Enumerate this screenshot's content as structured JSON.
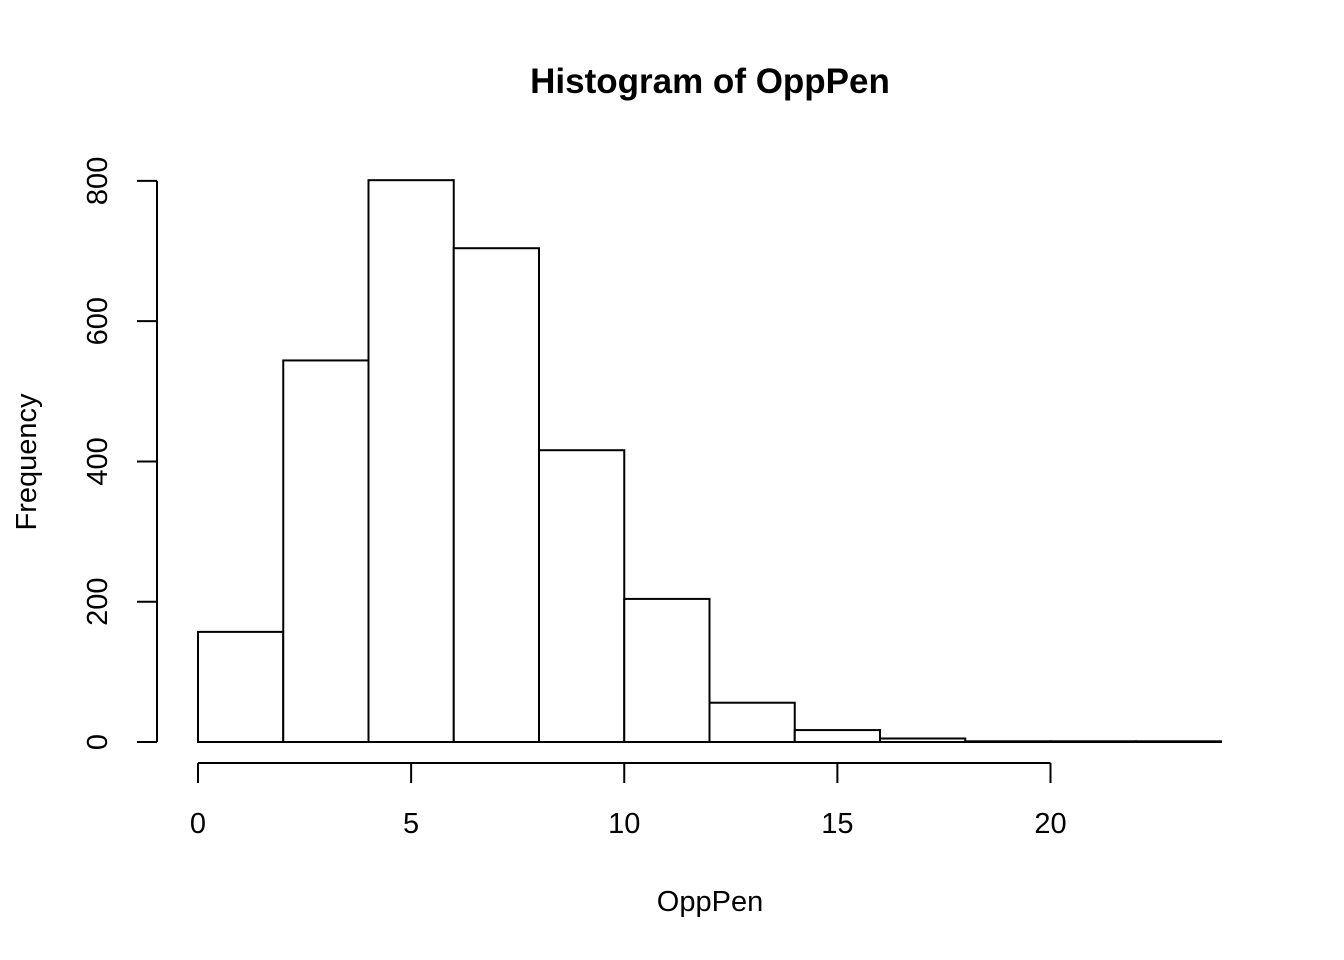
{
  "chart_data": {
    "type": "bar",
    "title": "Histogram of OppPen",
    "xlabel": "OppPen",
    "ylabel": "Frequency",
    "bin_edges": [
      0,
      2,
      4,
      6,
      8,
      10,
      12,
      14,
      16,
      18,
      20,
      22,
      24
    ],
    "values": [
      157,
      544,
      801,
      704,
      416,
      204,
      56,
      17,
      5,
      1,
      1,
      1
    ],
    "x_ticks": [
      0,
      5,
      10,
      15,
      20
    ],
    "y_ticks": [
      0,
      200,
      400,
      600,
      800
    ],
    "xlim": [
      0,
      24
    ],
    "ylim": [
      0,
      800
    ],
    "grid": false,
    "colors": {
      "bar_fill": "#ffffff",
      "bar_stroke": "#000000",
      "background": "#ffffff"
    }
  }
}
